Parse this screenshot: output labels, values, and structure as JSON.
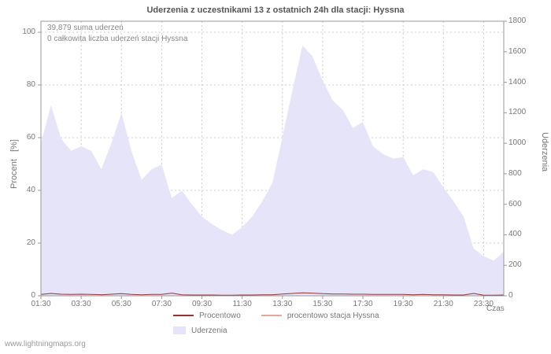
{
  "title": "Uderzenia z uczestnikami 13 z ostatnich 24h dla stacji: Hyssna",
  "annotations": {
    "sum": "39,879 suma uderzeń",
    "station": "0 całkowita liczba uderzeń stacji Hyssna"
  },
  "axes": {
    "left_label": "Procent   [%]",
    "right_label": "Uderzenia",
    "x_label": "Czas"
  },
  "legend": {
    "procentowo": "Procentowo",
    "procentowo_stacja": "procentowo stacja Hyssna",
    "uderzenia": "Uderzenia"
  },
  "watermark": "www.lightningmaps.org",
  "colors": {
    "area_fill": "#e6e4f8",
    "line_procentowo": "#993333",
    "line_stacja": "#e8a898",
    "grid": "#cccccc",
    "axis_border": "#999999",
    "text": "#777777",
    "title": "#555555"
  },
  "chart_data": {
    "type": "area",
    "title": "Uderzenia z uczestnikami 13 z ostatnich 24h dla stacji: Hyssna",
    "xlabel": "Czas",
    "grid": true,
    "legend_position": "bottom",
    "x_range_hours": [
      1.5,
      24.5
    ],
    "x_tick_hours": [
      1.5,
      3.5,
      5.5,
      7.5,
      9.5,
      11.5,
      13.5,
      15.5,
      17.5,
      19.5,
      21.5,
      23.5
    ],
    "x_tick_labels": [
      "01:30",
      "03:30",
      "05:30",
      "07:30",
      "09:30",
      "11:30",
      "13:30",
      "15:30",
      "17:30",
      "19:30",
      "21:30",
      "23:30"
    ],
    "y_left": {
      "label": "Procent [%]",
      "range": [
        0,
        100
      ],
      "ticks": [
        0,
        20,
        40,
        60,
        80,
        100
      ]
    },
    "y_right": {
      "label": "Uderzenia",
      "range": [
        0,
        1800
      ],
      "ticks": [
        0,
        200,
        400,
        600,
        800,
        1000,
        1200,
        1400,
        1600,
        1800
      ]
    },
    "times": [
      "01:30",
      "02:00",
      "02:30",
      "03:00",
      "03:30",
      "04:00",
      "04:30",
      "05:00",
      "05:30",
      "06:00",
      "06:30",
      "07:00",
      "07:30",
      "08:00",
      "08:30",
      "09:00",
      "09:30",
      "10:00",
      "10:30",
      "11:00",
      "11:30",
      "12:00",
      "12:30",
      "13:00",
      "13:30",
      "14:00",
      "14:30",
      "15:00",
      "15:30",
      "16:00",
      "16:30",
      "17:00",
      "17:30",
      "18:00",
      "18:30",
      "19:00",
      "19:30",
      "20:00",
      "20:30",
      "21:00",
      "21:30",
      "22:00",
      "22:30",
      "23:00",
      "23:30",
      "00:00",
      "00:30"
    ],
    "series": [
      {
        "name": "Uderzenia",
        "type": "area",
        "axis": "right",
        "color": "#e6e4f8",
        "values": [
          1000,
          1250,
          1030,
          950,
          980,
          950,
          830,
          1000,
          1200,
          950,
          760,
          830,
          860,
          640,
          690,
          600,
          520,
          470,
          430,
          400,
          450,
          520,
          620,
          740,
          1040,
          1350,
          1640,
          1570,
          1410,
          1280,
          1220,
          1100,
          1140,
          980,
          930,
          900,
          910,
          790,
          830,
          810,
          710,
          620,
          520,
          310,
          260,
          230,
          290
        ]
      },
      {
        "name": "Procentowo",
        "type": "line",
        "axis": "left",
        "color": "#993333",
        "values": [
          0.5,
          0.9,
          0.6,
          0.5,
          0.6,
          0.5,
          0.4,
          0.6,
          0.8,
          0.5,
          0.4,
          0.5,
          0.5,
          1.0,
          0.4,
          0.3,
          0.3,
          0.3,
          0.2,
          0.2,
          0.3,
          0.3,
          0.4,
          0.4,
          0.7,
          0.9,
          1.1,
          1.0,
          0.8,
          0.7,
          0.7,
          0.6,
          0.6,
          0.5,
          0.5,
          0.5,
          0.5,
          0.4,
          0.5,
          0.4,
          0.4,
          0.3,
          0.3,
          0.9,
          0.2,
          0.2,
          0.3
        ]
      },
      {
        "name": "procentowo stacja Hyssna",
        "type": "line",
        "axis": "left",
        "color": "#e8a898",
        "values": [
          0,
          0,
          0,
          0,
          0,
          0,
          0,
          0,
          0,
          0,
          0,
          0,
          0,
          0,
          0,
          0,
          0,
          0,
          0,
          0,
          0,
          0,
          0,
          0,
          0,
          0,
          0,
          0,
          0,
          0,
          0,
          0,
          0,
          0,
          0,
          0,
          0,
          0,
          0,
          0,
          0,
          0,
          0,
          0,
          0,
          0,
          0
        ]
      }
    ]
  }
}
